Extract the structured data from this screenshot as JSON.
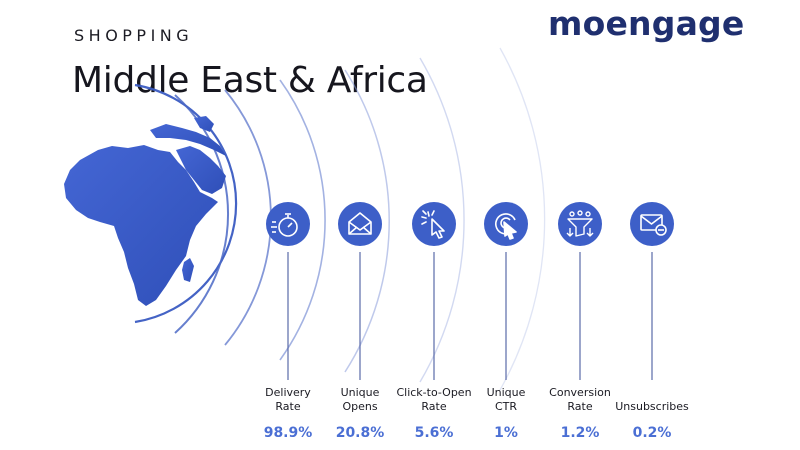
{
  "header": {
    "category": "SHOPPING",
    "title": "Middle East & Africa"
  },
  "logo": {
    "text_before": "m",
    "text_o": "o",
    "text_after": "engage"
  },
  "colors": {
    "brand_navy": "#1f2f6f",
    "icon_blue": "#3d5fc8",
    "value_blue": "#4b6fd4",
    "map_blue": "#3b5cc9"
  },
  "metrics": [
    {
      "icon": "stopwatch-icon",
      "label": "Delivery\nRate",
      "value": "98.9%"
    },
    {
      "icon": "envelope-open-icon",
      "label": "Unique\nOpens",
      "value": "20.8%"
    },
    {
      "icon": "cursor-click-icon",
      "label": "Click-to-Open\nRate",
      "value": "5.6%"
    },
    {
      "icon": "target-cursor-icon",
      "label": "Unique\nCTR",
      "value": "1%"
    },
    {
      "icon": "conversion-funnel-icon",
      "label": "Conversion\nRate",
      "value": "1.2%"
    },
    {
      "icon": "envelope-minus-icon",
      "label": "Unsubscribes",
      "value": "0.2%"
    }
  ]
}
